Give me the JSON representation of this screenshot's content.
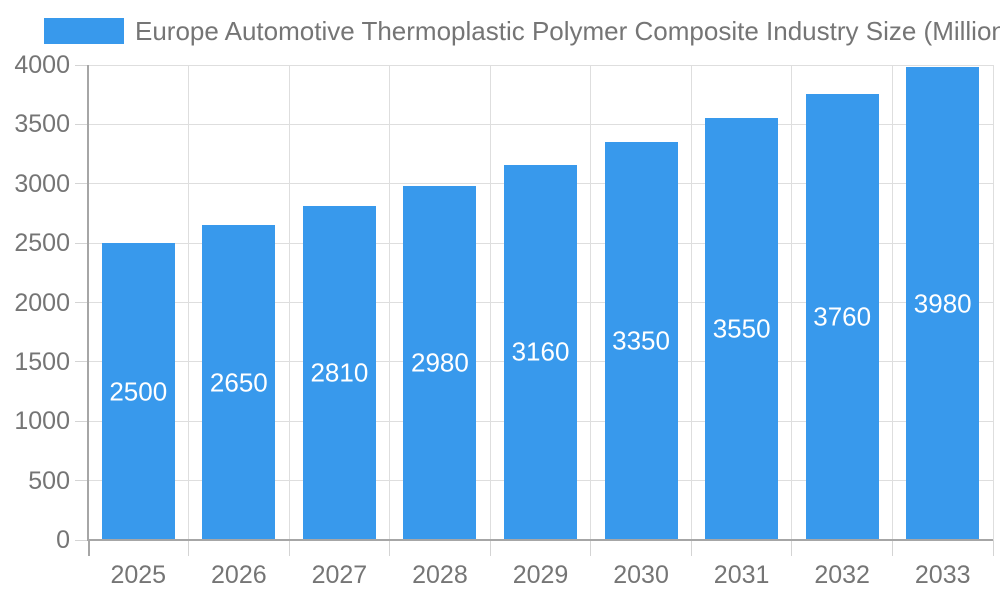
{
  "chart_data": {
    "type": "bar",
    "title": "Europe Automotive Thermoplastic Polymer Composite Industry Size (Million)",
    "categories": [
      "2025",
      "2026",
      "2027",
      "2028",
      "2029",
      "2030",
      "2031",
      "2032",
      "2033"
    ],
    "values": [
      2500,
      2650,
      2810,
      2980,
      3160,
      3350,
      3550,
      3760,
      3980
    ],
    "value_labels": [
      "2500",
      "2650",
      "2810",
      "2980",
      "3160",
      "3350",
      "3550",
      "3760",
      "3980"
    ],
    "xlabel": "",
    "ylabel": "",
    "ylim": [
      0,
      4000
    ],
    "yticks": [
      0,
      500,
      1000,
      1500,
      2000,
      2500,
      3000,
      3500,
      4000
    ],
    "grid": true,
    "legend_position": "top-left",
    "bar_value_labels_inside": true
  },
  "colors": {
    "bar": "#3899EC",
    "title_text": "#757575",
    "axis_text": "#757575",
    "value_label_text": "#FFFFFF",
    "gridline": "#DEDEDE",
    "tick": "#D4D4D4",
    "axis_line": "#A6A6A6",
    "background": "#FFFFFF"
  }
}
